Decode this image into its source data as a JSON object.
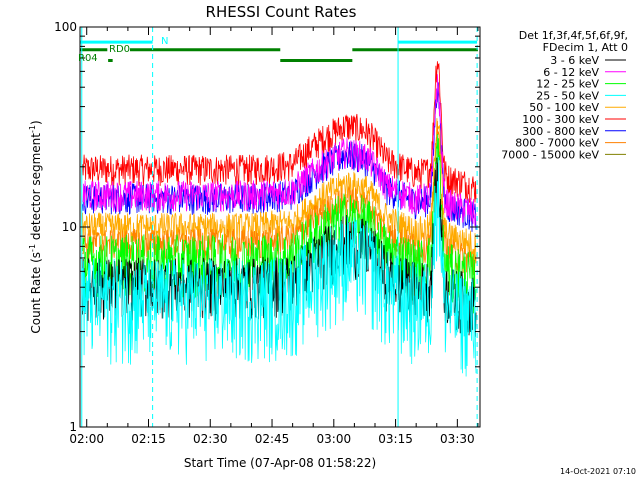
{
  "chart_data": {
    "type": "line",
    "title": "RHESSI Count Rates",
    "xlabel": "Start Time (07-Apr-08 01:58:22)",
    "ylabel_main": "Count Rate (s",
    "ylabel_sup1": "-1",
    "ylabel_mid": " detector segment",
    "ylabel_sup2": "-1",
    "ylabel_end": ")",
    "yscale": "log",
    "ylim": [
      1,
      100
    ],
    "xlim_minutes": [
      118.37,
      215.5
    ],
    "x_ticks": [
      {
        "label": "02:00",
        "minute": 120
      },
      {
        "label": "02:15",
        "minute": 135
      },
      {
        "label": "02:30",
        "minute": 150
      },
      {
        "label": "02:45",
        "minute": 165
      },
      {
        "label": "03:00",
        "minute": 180
      },
      {
        "label": "03:15",
        "minute": 195
      },
      {
        "label": "03:30",
        "minute": 210
      }
    ],
    "y_ticks": [
      {
        "label": "1",
        "value": 1
      },
      {
        "label": "10",
        "value": 10
      },
      {
        "label": "100",
        "value": 100
      }
    ],
    "legend": {
      "header1": "Det 1f,3f,4f,5f,6f,9f,",
      "header2": "FDecim 1, Att 0"
    },
    "series": [
      {
        "name": "3 - 6 keV",
        "color": "#000000",
        "base": 5.2
      },
      {
        "name": "6 - 12 keV",
        "color": "#ff00ff",
        "base": 14.5
      },
      {
        "name": "12 - 25 keV",
        "color": "#00ff00",
        "base": 6.8
      },
      {
        "name": "25 - 50 keV",
        "color": "#00ffff",
        "base": 4.5
      },
      {
        "name": "50 - 100 keV",
        "color": "#ffaa00",
        "base": 10
      },
      {
        "name": "100 - 300 keV",
        "color": "#ff0000",
        "base": 19.5
      },
      {
        "name": "300 - 800 keV",
        "color": "#0000ff",
        "base": 14
      },
      {
        "name": "800 - 7000 keV",
        "color": "#ff8000",
        "base": 8.3
      },
      {
        "name": "7000 - 15000 keV",
        "color": "#808000",
        "base": 0
      }
    ],
    "events": [
      {
        "minute": 120.0,
        "base": 1.0
      },
      {
        "minute": 136.0,
        "base": 1.0
      },
      {
        "minute": 160.0,
        "base": 1.0
      },
      {
        "minute": 170.0,
        "base": 1.05
      },
      {
        "minute": 178.0,
        "base": 1.45
      },
      {
        "minute": 183.0,
        "base": 1.65
      },
      {
        "minute": 188.0,
        "base": 1.55
      },
      {
        "minute": 193.0,
        "base": 1.1
      },
      {
        "minute": 200.0,
        "base": 0.95
      },
      {
        "minute": 205.0,
        "base": 1.0
      },
      {
        "minute": 208.0,
        "base": 0.9
      },
      {
        "minute": 212.0,
        "base": 0.85
      },
      {
        "minute": 214.5,
        "base": 0.8
      }
    ],
    "flare_peak": {
      "minute": 205.2,
      "factor": 3.5
    },
    "saa_intervals": [
      [
        118.37,
        136.0
      ],
      [
        195.6,
        214.8
      ]
    ],
    "saa_dashed_lines": [
      136.0,
      214.8
    ],
    "saa_solid_lines": [
      118.8,
      195.6
    ],
    "flag_labels": {
      "n": "N",
      "rd0": "RD0",
      "rd4": "R04"
    },
    "flags": [
      {
        "name": "N",
        "color": "#00ffff",
        "value": 84,
        "intervals": [
          [
            118.37,
            136.0
          ],
          [
            195.6,
            214.8
          ]
        ]
      },
      {
        "name": "RD0",
        "color": "#008000",
        "value": 77,
        "intervals": [
          [
            118.37,
            125.0
          ],
          [
            130.5,
            167.0
          ],
          [
            184.5,
            215.0
          ]
        ]
      },
      {
        "name": "RD0-dip",
        "color": "#008000",
        "value": 68,
        "intervals": [
          [
            167.0,
            184.5
          ]
        ]
      },
      {
        "name": "R04",
        "color": "#008000",
        "value": 68,
        "intervals": [
          [
            125.2,
            126.3
          ]
        ]
      }
    ],
    "footer_timestamp": "14-Oct-2021 07:10"
  }
}
